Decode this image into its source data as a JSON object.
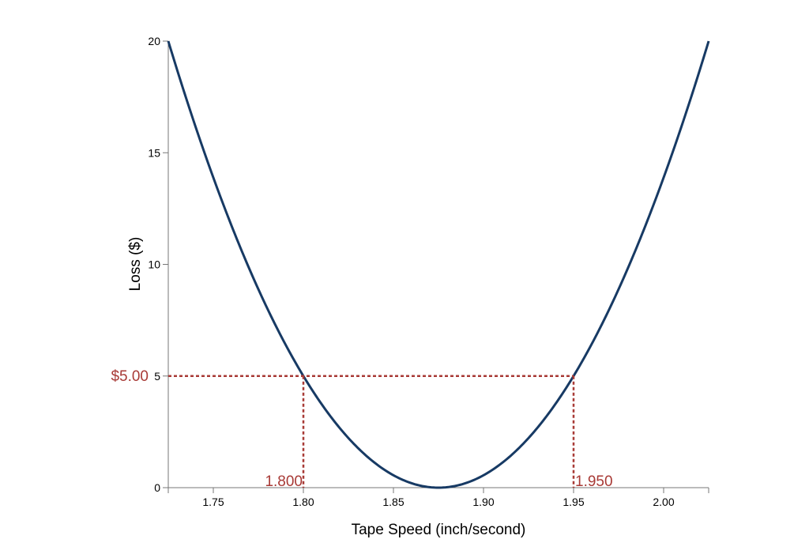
{
  "chart_data": {
    "type": "line",
    "title": "",
    "xlabel": "Tape Speed (inch/second)",
    "ylabel": "Loss ($)",
    "xlim": [
      1.725,
      2.025
    ],
    "ylim": [
      0,
      20
    ],
    "xticks": [
      "1.75",
      "1.80",
      "1.85",
      "1.90",
      "1.95",
      "2.00"
    ],
    "yticks": [
      "0",
      "5",
      "10",
      "15",
      "20"
    ],
    "grid": false,
    "series": [
      {
        "function": "loss = 888.89 * (x - 1.875)^2",
        "color": "#173a64",
        "x": [
          1.725,
          1.75,
          1.775,
          1.8,
          1.825,
          1.85,
          1.875,
          1.9,
          1.925,
          1.95,
          1.975,
          2.0,
          2.025
        ],
        "y": [
          20,
          13.89,
          8.89,
          5,
          2.22,
          0.56,
          0,
          0.56,
          2.22,
          5,
          8.89,
          13.89,
          20
        ]
      }
    ],
    "annotations": {
      "color": "#a83a36",
      "loss_level": 5,
      "loss_label": "$5.00",
      "left_x": 1.8,
      "left_label": "1.800",
      "right_x": 1.95,
      "right_label": "1.950"
    }
  }
}
